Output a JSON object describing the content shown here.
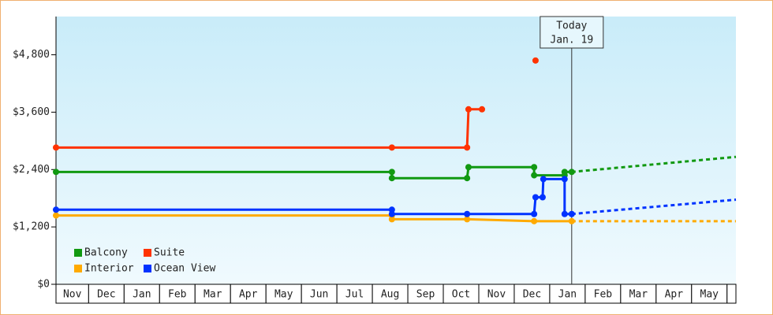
{
  "chart_data": {
    "type": "line",
    "annotation": {
      "title": "Today",
      "date": "Jan. 19",
      "x": 14.62
    },
    "categories": [
      "Nov",
      "Dec",
      "Jan",
      "Feb",
      "Mar",
      "Apr",
      "May",
      "Jun",
      "Jul",
      "Aug",
      "Sep",
      "Oct",
      "Nov",
      "Dec",
      "Jan",
      "Feb",
      "Mar",
      "Apr",
      "May",
      null
    ],
    "xlim": [
      0.08,
      19.25
    ],
    "ylim": [
      0,
      5600
    ],
    "yticks": [
      {
        "value": 0,
        "label": "$0"
      },
      {
        "value": 1200,
        "label": "$1,200"
      },
      {
        "value": 2400,
        "label": "$2,400"
      },
      {
        "value": 3600,
        "label": "$3,600"
      },
      {
        "value": 4800,
        "label": "$4,800"
      }
    ],
    "grid": false,
    "legend": "lower left",
    "series": [
      {
        "name": "Balcony",
        "color": "#119911",
        "x": [
          0.08,
          9.55,
          9.55,
          11.67,
          11.71,
          13.56,
          13.56,
          14.42,
          14.42,
          14.62
        ],
        "values": [
          2350,
          2350,
          2220,
          2220,
          2450,
          2450,
          2280,
          2280,
          2350,
          2350
        ],
        "forecast": {
          "x": [
            14.62,
            19.25
          ],
          "values": [
            2350,
            2665
          ]
        }
      },
      {
        "name": "Suite",
        "color": "#ff3300",
        "x": [
          0.08,
          9.55,
          11.67,
          11.71,
          12.09,
          null,
          13.6
        ],
        "values": [
          2860,
          2860,
          2860,
          3660,
          3660,
          null,
          4680
        ]
      },
      {
        "name": "Interior",
        "color": "#ffaa00",
        "x": [
          0.08,
          9.55,
          9.55,
          11.67,
          13.56,
          14.62
        ],
        "values": [
          1440,
          1440,
          1360,
          1360,
          1320,
          1320
        ],
        "forecast": {
          "x": [
            14.62,
            19.25
          ],
          "values": [
            1320,
            1320
          ]
        }
      },
      {
        "name": "Ocean View",
        "color": "#0033ff",
        "x": [
          0.08,
          9.55,
          9.55,
          11.67,
          13.56,
          13.6,
          13.8,
          13.82,
          14.42,
          14.42,
          14.62
        ],
        "values": [
          1560,
          1560,
          1470,
          1470,
          1470,
          1820,
          1820,
          2200,
          2200,
          1470,
          1470
        ],
        "forecast": {
          "x": [
            14.62,
            19.25
          ],
          "values": [
            1470,
            1770
          ]
        }
      }
    ]
  }
}
